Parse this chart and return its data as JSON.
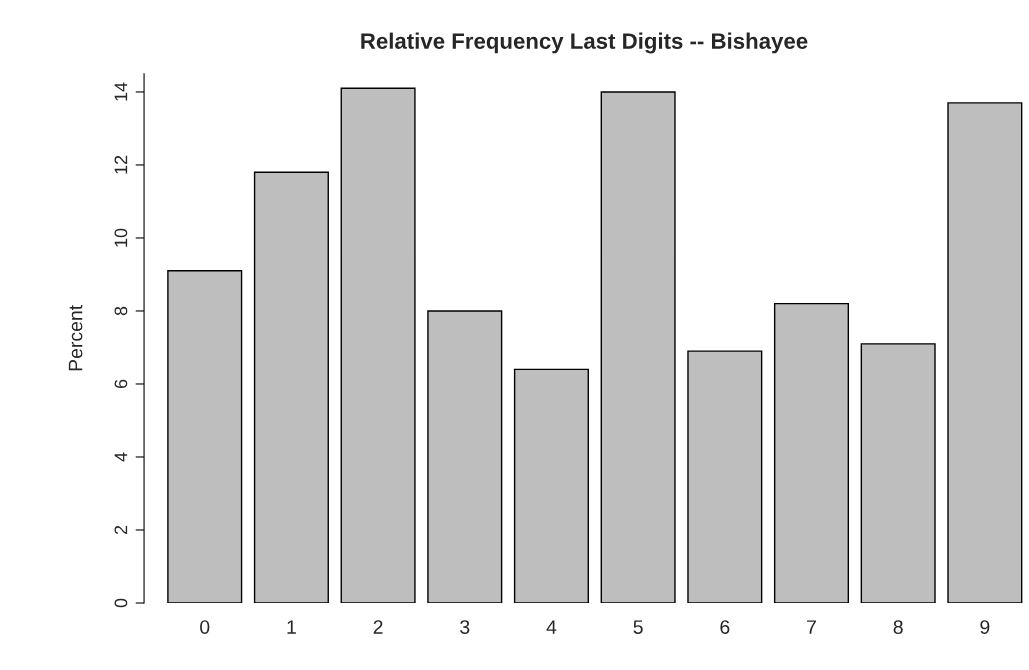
{
  "chart_data": {
    "type": "bar",
    "title": "Relative Frequency Last Digits -- Bishayee",
    "ylabel": "Percent",
    "categories": [
      "0",
      "1",
      "2",
      "3",
      "4",
      "5",
      "6",
      "7",
      "8",
      "9"
    ],
    "values": [
      9.1,
      11.8,
      14.1,
      8.0,
      6.4,
      14.0,
      6.9,
      8.2,
      7.1,
      13.7
    ],
    "color": "#bebebe",
    "ylim": [
      0,
      14.5
    ],
    "yticks": [
      0,
      2,
      4,
      6,
      8,
      10,
      12,
      14
    ],
    "grid": false,
    "legend": false
  }
}
